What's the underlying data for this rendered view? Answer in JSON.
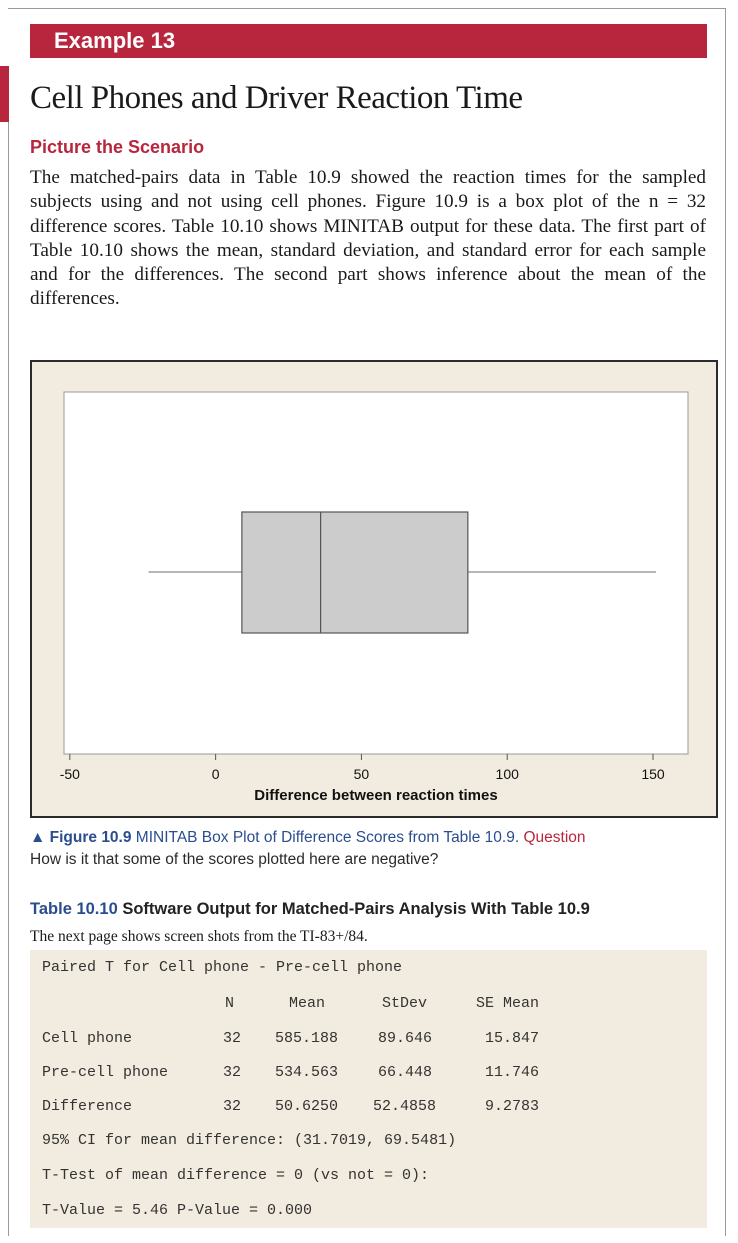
{
  "banner": "Example 13",
  "title": "Cell Phones and Driver Reaction Time",
  "subhead": "Picture the Scenario",
  "paragraph": [
    "The matched-pairs data in Table 10.9 showed the reaction times for the",
    "sampled subjects using and not using cell phones. Figure 10.9 is a box plot",
    "of the n = 32 difference scores. Table 10.10 shows MINITAB output for",
    "these data. The first part of Table 10.10 shows the mean, standard deviation,",
    "and standard error for each sample and for the differences. The second part",
    "shows inference about the mean of the differences."
  ],
  "chart_data": {
    "type": "box",
    "xlabel": "Difference between reaction times",
    "xlim": [
      -52,
      162
    ],
    "ticks": [
      -50,
      0,
      50,
      100,
      150
    ],
    "tick_labels": [
      "-50",
      "0",
      "50",
      "100",
      "150"
    ],
    "box": {
      "whisker_low": -23,
      "q1": 9,
      "median": 36,
      "q3": 86.5,
      "whisker_high": 151
    },
    "box_fill": "#cccccc",
    "grid": false
  },
  "caption": {
    "figure_label": "▲ Figure 10.9",
    "text": " MINITAB Box Plot of Difference Scores from Table 10.9.",
    "question_label": " Question",
    "question": "How is it that some of the scores plotted here are negative?"
  },
  "table_title": {
    "number": "Table 10.10",
    "text": " Software Output for Matched-Pairs Analysis With Table 10.9"
  },
  "table_note": "The next page shows screen shots from the TI-83+/84.",
  "output": {
    "heading": "Paired T for Cell phone - Pre-cell phone",
    "columns": [
      "N",
      "Mean",
      "StDev",
      "SE Mean"
    ],
    "rows": [
      {
        "label": "Cell phone",
        "cells": [
          "32",
          "585.188",
          "89.646",
          "15.847"
        ]
      },
      {
        "label": "Pre-cell phone",
        "cells": [
          "32",
          "534.563",
          "66.448",
          "11.746"
        ]
      },
      {
        "label": "Difference",
        "cells": [
          "32",
          "50.6250",
          "52.4858",
          "9.2783"
        ]
      }
    ],
    "ci_line": "95% CI for mean difference: (31.7019, 69.5481)",
    "ttest_line": "T-Test of mean difference = 0 (vs not = 0):",
    "result_line": "T-Value = 5.46 P-Value = 0.000"
  }
}
